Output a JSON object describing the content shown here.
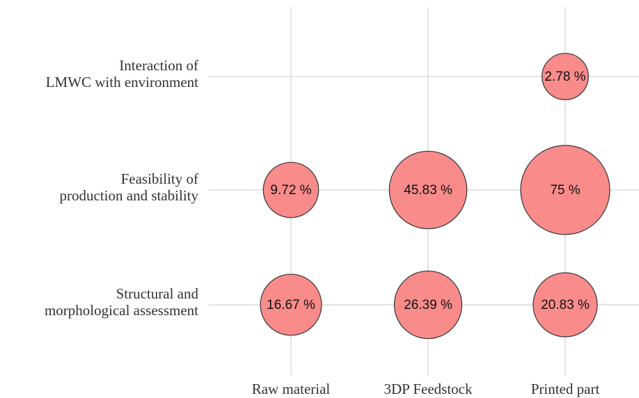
{
  "chart_data": {
    "type": "bubble",
    "x_categories": [
      "Raw material",
      "3DP Feedstock",
      "Printed part"
    ],
    "y_categories": [
      [
        "Interaction of",
        "LMWC with environment"
      ],
      [
        "Feasibility of",
        "production and stability"
      ],
      [
        "Structural and",
        "morphological assessment"
      ]
    ],
    "values": [
      [
        null,
        null,
        2.78
      ],
      [
        9.72,
        45.83,
        75
      ],
      [
        16.67,
        26.39,
        20.83
      ]
    ],
    "value_labels": [
      [
        null,
        null,
        "2.78 %"
      ],
      [
        "9.72 %",
        "45.83 %",
        "75 %"
      ],
      [
        "16.67 %",
        "26.39 %",
        "20.83 %"
      ]
    ],
    "color": "#f98b8b",
    "grid": true
  }
}
